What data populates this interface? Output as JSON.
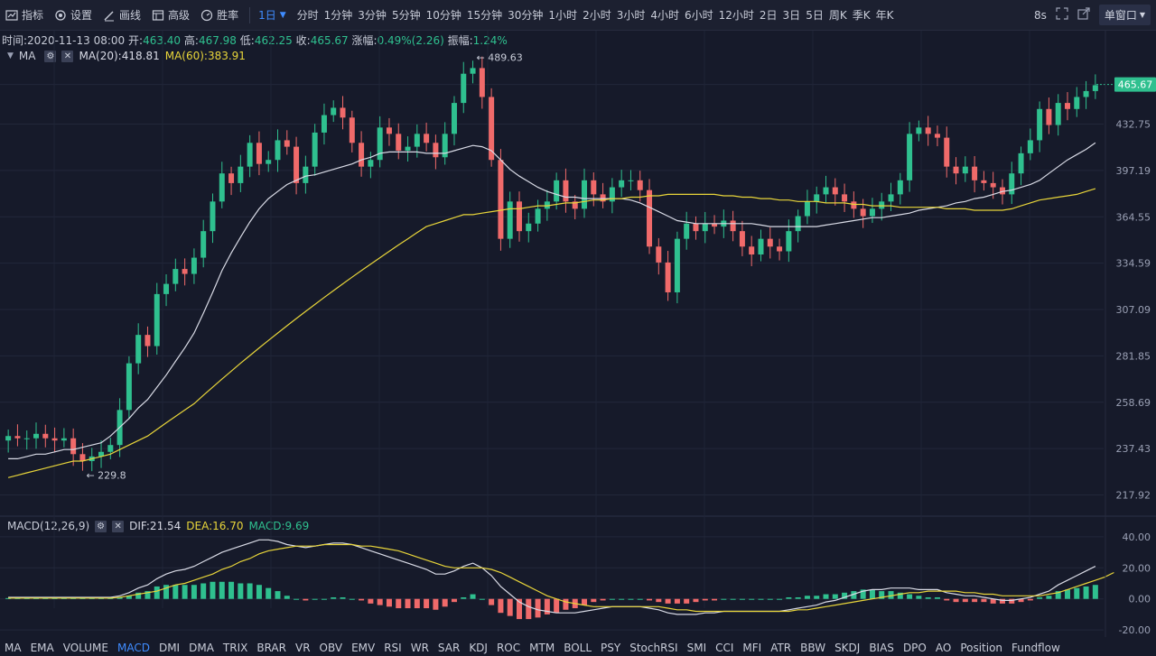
{
  "toolbar": {
    "tools": [
      {
        "label": "指标",
        "icon": "indicator-icon"
      },
      {
        "label": "设置",
        "icon": "settings-icon"
      },
      {
        "label": "画线",
        "icon": "draw-line-icon"
      },
      {
        "label": "高级",
        "icon": "advanced-icon"
      },
      {
        "label": "胜率",
        "icon": "win-rate-icon"
      }
    ],
    "active_interval": "1日",
    "intervals": [
      "分时",
      "1分钟",
      "3分钟",
      "5分钟",
      "10分钟",
      "15分钟",
      "30分钟",
      "1小时",
      "2小时",
      "3小时",
      "4小时",
      "6小时",
      "12小时",
      "2日",
      "3日",
      "5日",
      "周K",
      "季K",
      "年K"
    ],
    "refresh": "8s",
    "window_button": "单窗口"
  },
  "ohlc": {
    "time_label": "时间:",
    "time": "2020-11-13 08:00",
    "open_label": "开:",
    "open": "463.40",
    "high_label": "高:",
    "high": "467.98",
    "low_label": "低:",
    "low": "462.25",
    "close_label": "收:",
    "close": "465.67",
    "change_label": "涨幅:",
    "change": "0.49%(2.26)",
    "amplitude_label": "振幅:",
    "amplitude": "1.24%"
  },
  "ma_legend": {
    "name": "MA",
    "ma20": "MA(20):418.81",
    "ma60": "MA(60):383.91"
  },
  "macd_legend": {
    "name": "MACD(12,26,9)",
    "dif": "DIF:21.54",
    "dea": "DEA:16.70",
    "macd": "MACD:9.69"
  },
  "bottom_tabs": [
    "MA",
    "EMA",
    "VOLUME",
    "MACD",
    "DMI",
    "DMA",
    "TRIX",
    "BRAR",
    "VR",
    "OBV",
    "EMV",
    "RSI",
    "WR",
    "SAR",
    "KDJ",
    "ROC",
    "MTM",
    "BOLL",
    "PSY",
    "StochRSI",
    "SMI",
    "CCI",
    "MFI",
    "ATR",
    "BBW",
    "SKDJ",
    "BIAS",
    "DPO",
    "AO",
    "Position",
    "Fundflow"
  ],
  "active_tab": "MACD",
  "colors": {
    "up": "#2fc08f",
    "down": "#f06a6a",
    "ma20": "#d9dbe6",
    "ma60": "#e8d53a",
    "accent": "#3f8cff",
    "bg": "#161a2a"
  },
  "chart_data": [
    {
      "type": "candlestick",
      "price_axis_ticks": [
        "465.67",
        "432.75",
        "397.19",
        "364.55",
        "334.59",
        "307.09",
        "281.85",
        "258.69",
        "237.43",
        "217.92"
      ],
      "last_price": "465.67",
      "annotations": {
        "high": "← 489.63",
        "low": "← 229.8"
      },
      "ylim": [
        212,
        495
      ],
      "scale": "log",
      "closes": [
        243,
        242,
        242,
        244,
        242,
        241,
        242,
        235,
        232,
        234,
        236,
        239,
        255,
        278,
        293,
        287,
        316,
        322,
        331,
        328,
        338,
        355,
        375,
        395,
        388,
        400,
        418,
        402,
        405,
        420,
        415,
        388,
        400,
        426,
        440,
        446,
        438,
        418,
        400,
        405,
        430,
        425,
        412,
        415,
        425,
        418,
        407,
        425,
        450,
        475,
        480,
        455,
        405,
        350,
        375,
        355,
        360,
        370,
        375,
        390,
        375,
        370,
        390,
        380,
        375,
        385,
        390,
        390,
        383,
        345,
        335,
        317,
        350,
        360,
        355,
        360,
        358,
        362,
        355,
        345,
        340,
        350,
        345,
        342,
        355,
        365,
        375,
        380,
        385,
        380,
        375,
        370,
        365,
        370,
        375,
        380,
        390,
        425,
        430,
        425,
        422,
        400,
        395,
        400,
        390,
        388,
        385,
        380,
        395,
        410,
        420,
        445,
        432,
        450,
        445,
        455,
        460,
        465
      ],
      "ma20": [
        233,
        233,
        234,
        235,
        235,
        236,
        237,
        237,
        238,
        239,
        240,
        243,
        247,
        251,
        256,
        260,
        266,
        272,
        279,
        286,
        294,
        305,
        317,
        330,
        341,
        351,
        361,
        370,
        377,
        382,
        387,
        390,
        393,
        394,
        396,
        398,
        400,
        402,
        405,
        407,
        410,
        411,
        411,
        411,
        411,
        410,
        410,
        410,
        412,
        414,
        416,
        415,
        412,
        405,
        398,
        393,
        389,
        385,
        382,
        380,
        378,
        378,
        377,
        377,
        377,
        377,
        377,
        376,
        374,
        371,
        368,
        365,
        362,
        361,
        360,
        360,
        360,
        360,
        360,
        360,
        360,
        359,
        358,
        358,
        358,
        358,
        358,
        358,
        359,
        360,
        361,
        362,
        363,
        364,
        364,
        365,
        366,
        367,
        369,
        370,
        371,
        372,
        374,
        375,
        377,
        378,
        380,
        382,
        383,
        385,
        387,
        390,
        395,
        400,
        405,
        409,
        413,
        418
      ],
      "ma60": [
        225,
        226,
        227,
        228,
        229,
        230,
        231,
        232,
        232,
        233,
        234,
        235,
        237,
        239,
        241,
        243,
        246,
        249,
        252,
        255,
        258,
        262,
        266,
        270,
        274,
        278,
        282,
        286,
        290,
        294,
        298,
        302,
        306,
        310,
        314,
        318,
        322,
        326,
        330,
        334,
        338,
        342,
        346,
        350,
        354,
        358,
        360,
        362,
        364,
        366,
        366,
        367,
        368,
        369,
        370,
        370,
        371,
        372,
        372,
        373,
        374,
        374,
        375,
        376,
        376,
        377,
        377,
        378,
        378,
        379,
        379,
        380,
        380,
        380,
        380,
        380,
        380,
        379,
        379,
        378,
        378,
        377,
        377,
        376,
        376,
        375,
        375,
        375,
        374,
        374,
        374,
        373,
        373,
        372,
        372,
        372,
        371,
        371,
        371,
        371,
        371,
        370,
        370,
        370,
        369,
        369,
        369,
        369,
        370,
        372,
        374,
        376,
        377,
        378,
        379,
        380,
        382,
        384
      ]
    },
    {
      "type": "macd",
      "axis_ticks": [
        "40.00",
        "20.00",
        "0.00",
        "-20.00"
      ],
      "ylim": [
        -24,
        44
      ],
      "dif": [
        1,
        1,
        1,
        1,
        1,
        1,
        1,
        1,
        1,
        1,
        1,
        1,
        2,
        4,
        7,
        9,
        13,
        16,
        18,
        19,
        21,
        24,
        27,
        30,
        32,
        34,
        36,
        38,
        38,
        37,
        35,
        34,
        33,
        34,
        35,
        36,
        36,
        35,
        33,
        31,
        29,
        27,
        25,
        23,
        21,
        19,
        16,
        16,
        18,
        21,
        23,
        20,
        15,
        8,
        3,
        -2,
        -5,
        -7,
        -8,
        -9,
        -9,
        -9,
        -8,
        -7,
        -6,
        -5,
        -5,
        -5,
        -5,
        -6,
        -7,
        -9,
        -10,
        -10,
        -10,
        -9,
        -9,
        -8,
        -8,
        -8,
        -8,
        -8,
        -8,
        -8,
        -7,
        -6,
        -5,
        -4,
        -2,
        -1,
        1,
        3,
        5,
        6,
        6,
        7,
        7,
        7,
        6,
        6,
        6,
        4,
        3,
        2,
        2,
        1,
        0,
        -1,
        -1,
        0,
        1,
        3,
        5,
        9,
        12,
        15,
        18,
        21
      ],
      "dea": [
        0.5,
        0.5,
        0.5,
        0.5,
        0.5,
        0.5,
        0.5,
        0.5,
        0.5,
        0.5,
        0.5,
        0.5,
        1,
        2,
        3,
        4,
        5,
        7,
        9,
        10,
        12,
        14,
        16,
        19,
        21,
        24,
        26,
        29,
        31,
        32,
        33,
        34,
        34,
        34,
        35,
        35,
        35,
        35,
        34,
        34,
        33,
        32,
        31,
        29,
        27,
        25,
        23,
        21,
        20,
        20,
        20,
        20,
        19,
        17,
        14,
        11,
        8,
        5,
        2,
        0,
        -2,
        -3,
        -4,
        -5,
        -5,
        -5,
        -5,
        -5,
        -5,
        -5,
        -5,
        -6,
        -7,
        -7,
        -8,
        -8,
        -8,
        -8,
        -8,
        -8,
        -8,
        -8,
        -8,
        -8,
        -8,
        -7,
        -7,
        -6,
        -5,
        -4,
        -3,
        -2,
        -1,
        0,
        1,
        2,
        3,
        4,
        4,
        5,
        5,
        5,
        5,
        4,
        4,
        3,
        3,
        2,
        2,
        2,
        2,
        2,
        3,
        4,
        6,
        8,
        10,
        12,
        14,
        17
      ]
    }
  ]
}
